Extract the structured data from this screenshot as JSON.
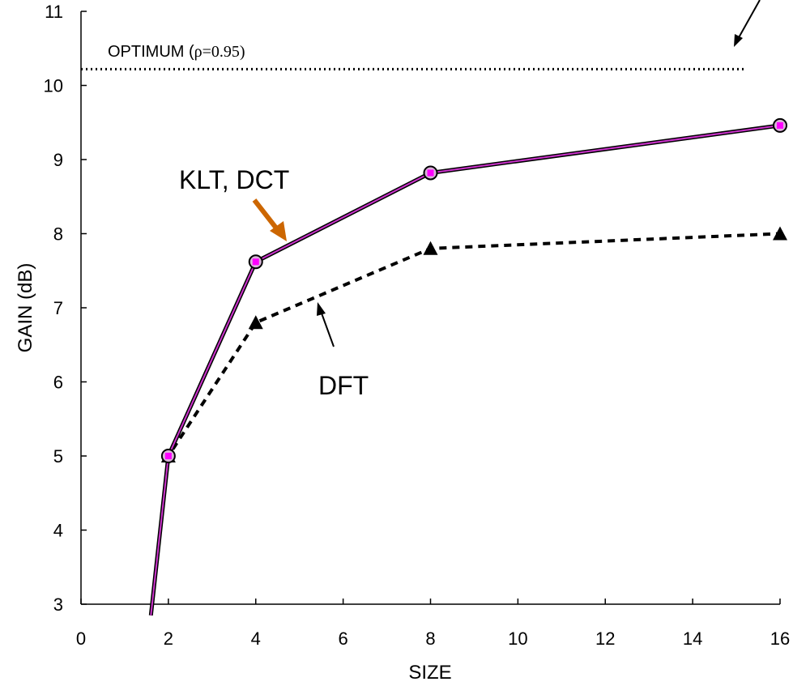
{
  "chart_data": {
    "type": "line",
    "title": "",
    "xlabel": "SIZE",
    "ylabel": "GAIN (dB)",
    "xlim": [
      0,
      16
    ],
    "ylim": [
      3,
      11
    ],
    "xticks": [
      0,
      2,
      4,
      6,
      8,
      10,
      12,
      14,
      16
    ],
    "yticks": [
      3,
      4,
      5,
      6,
      7,
      8,
      9,
      10,
      11
    ],
    "grid": false,
    "legend": "none",
    "series": [
      {
        "name": "KLT, DCT",
        "style": "solid",
        "color": "#cc33cc",
        "marker_color": "#ff00ff",
        "x": [
          1.6,
          2,
          4,
          8,
          16
        ],
        "y": [
          2.85,
          5.0,
          7.62,
          8.82,
          9.46
        ]
      },
      {
        "name": "DFT",
        "style": "dashed",
        "color": "#000000",
        "x": [
          1.6,
          2,
          4,
          8,
          16
        ],
        "y": [
          2.85,
          5.0,
          6.8,
          7.8,
          8.0
        ]
      },
      {
        "name": "OPTIMUM",
        "style": "dotted",
        "color": "#000000",
        "x": [
          0,
          15.2
        ],
        "y": [
          10.22,
          10.22
        ]
      }
    ],
    "annotations": {
      "optimum_prefix": "OPTIMUM (",
      "optimum_rho": "ρ=0.95)",
      "klt_dct": "KLT, DCT",
      "dft": "DFT"
    }
  }
}
